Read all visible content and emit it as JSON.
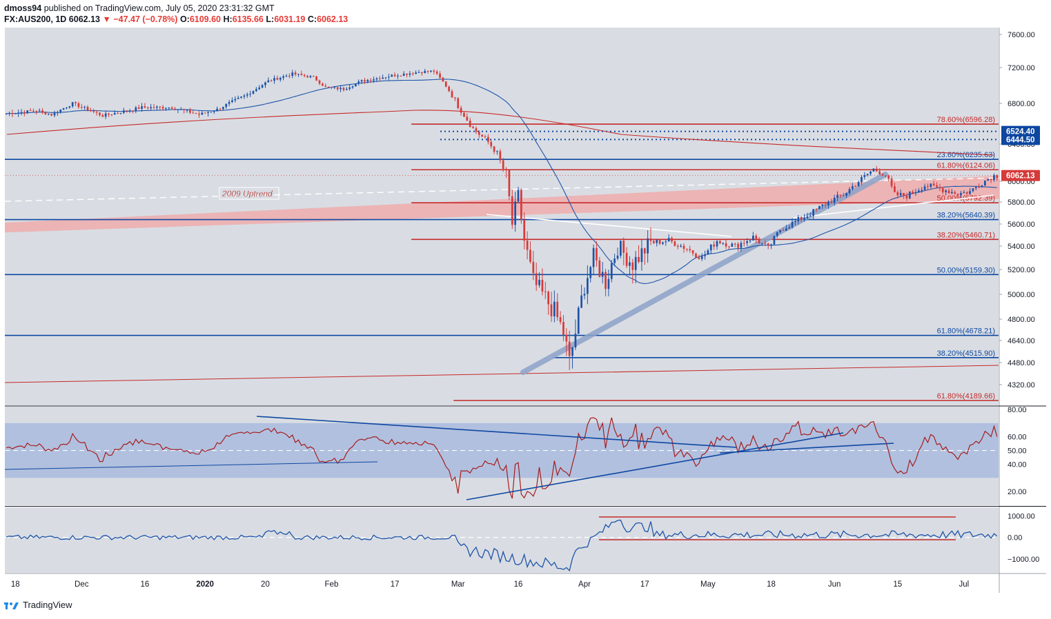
{
  "header": {
    "author": "dmoss94",
    "published": "published on TradingView.com, July 05, 2020 23:31:32 GMT",
    "symbol": "FX:AUS200, 1D",
    "last": "6062.13",
    "change": "−47.47 (−0.78%)",
    "o_label": "O:",
    "o": "6109.60",
    "h_label": "H:",
    "h": "6135.66",
    "l_label": "L:",
    "l": "6031.19",
    "c_label": "C:",
    "c": "6062.13"
  },
  "footer": {
    "brand": "TradingView"
  },
  "colors": {
    "bull": "#1e53a8",
    "bear": "#d63a3a",
    "red_line": "#c62828",
    "blue_line": "#0d47a1",
    "band": "#f2a5a5",
    "rsi_band": "#9fb3dd",
    "pane_bg": "#d9dde3"
  },
  "chart_data": {
    "type": "candlestick",
    "title": "FX:AUS200, 1D",
    "price_axis": {
      "ylim": [
        4150,
        7700
      ],
      "ticks": [
        "7600.00",
        "7200.00",
        "6800.00",
        "6400.00",
        "6000.00",
        "5800.00",
        "5600.00",
        "5400.00",
        "5200.00",
        "5000.00",
        "4800.00",
        "4640.00",
        "4480.00",
        "4320.00"
      ]
    },
    "x_ticks": [
      "18",
      "Dec",
      "16",
      "2020",
      "20",
      "Feb",
      "17",
      "Mar",
      "16",
      "Apr",
      "17",
      "May",
      "18",
      "Jun",
      "15",
      "Jul"
    ],
    "x_tick_index": [
      3,
      25,
      46,
      66,
      86,
      108,
      129,
      150,
      170,
      192,
      212,
      233,
      254,
      275,
      296,
      318
    ],
    "price_badges": [
      {
        "value": "6524.40",
        "color": "#0d47a1"
      },
      {
        "value": "6444.50",
        "color": "#0d47a1"
      },
      {
        "value": "6062.13",
        "color": "#d63a3a"
      }
    ],
    "horizontal_levels": [
      {
        "price": 6596.28,
        "label": "78.60%(6596.28)",
        "color": "#c62828",
        "from": 135
      },
      {
        "price": 6235.63,
        "label": "23.60%(6235.63)",
        "color": "#0d47a1",
        "from": 0
      },
      {
        "price": 6124.06,
        "label": "61.80%(6124.06)",
        "color": "#c62828",
        "from": 135
      },
      {
        "price": 5792.39,
        "label": "50.00%(5792.39)",
        "color": "#c62828",
        "from": 135
      },
      {
        "price": 5640.39,
        "label": "38.20%(5640.39)",
        "color": "#0d47a1",
        "from": 0
      },
      {
        "price": 5460.71,
        "label": "38.20%(5460.71)",
        "color": "#c62828",
        "from": 135
      },
      {
        "price": 5159.3,
        "label": "50.00%(5159.30)",
        "color": "#0d47a1",
        "from": 0
      },
      {
        "price": 4678.21,
        "label": "61.80%(4678.21)",
        "color": "#0d47a1",
        "from": 0
      },
      {
        "price": 4515.9,
        "label": "38.20%(4515.90)",
        "color": "#0d47a1",
        "from": 182
      },
      {
        "price": 4189.66,
        "label": "61.80%(4189.66)",
        "color": "#c62828",
        "from": 149
      }
    ],
    "dotted_levels": [
      6524.4,
      6444.5
    ],
    "annotation": "2009 Uptrend",
    "rsi": {
      "ticks": [
        "80.00",
        "60.00",
        "50.00",
        "40.00",
        "20.00"
      ],
      "ylim": [
        10,
        82
      ],
      "band": [
        30,
        70
      ]
    },
    "osc": {
      "ticks": [
        "1000.00",
        "0.00",
        "−1000.00"
      ],
      "ylim": [
        -1650,
        1400
      ]
    }
  }
}
